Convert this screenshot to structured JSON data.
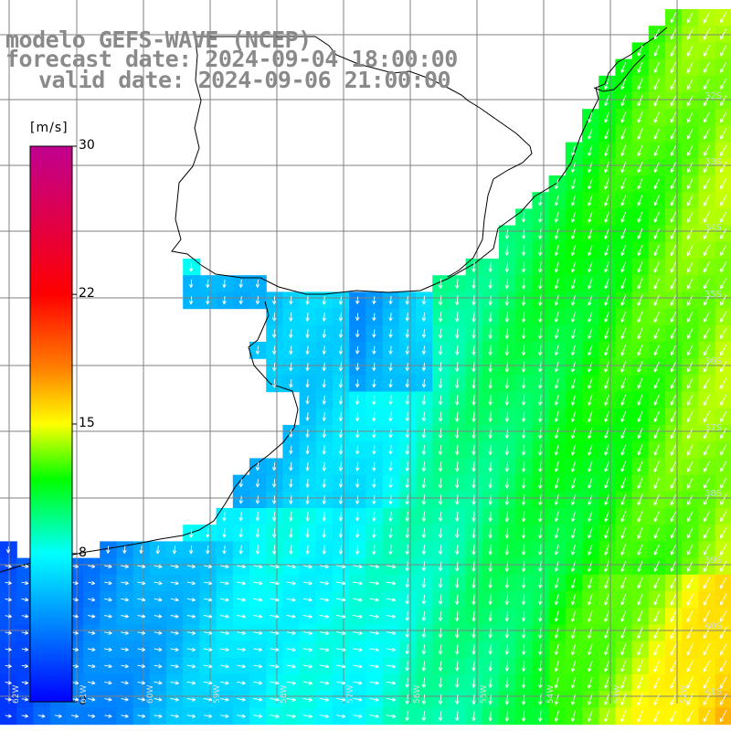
{
  "title": {
    "line1": "modelo GEFS-WAVE (NCEP)",
    "line2": "forecast date: 2024-09-04 18:00:00",
    "line3": "valid date: 2024-09-06 21:00:00"
  },
  "colorbar": {
    "unit": "[m/s]",
    "min": 0,
    "max": 30,
    "ticks": [
      "30",
      "22",
      "15",
      "8",
      "0"
    ],
    "tick_values": [
      30,
      22,
      15,
      8,
      0
    ],
    "stops": [
      "#0000ff",
      "#0080ff",
      "#00ffff",
      "#00ff00",
      "#ffff00",
      "#ff8000",
      "#ff0000",
      "#c00090"
    ],
    "stop_values": [
      0,
      4,
      8,
      12,
      15,
      18,
      22,
      30
    ]
  },
  "grid": {
    "lat_labels": [
      "32S",
      "33S",
      "34S",
      "35S",
      "36S",
      "37S",
      "38S",
      "39S",
      "40S",
      "41S"
    ],
    "lon_labels": [
      "62W",
      "61W",
      "60W",
      "59W",
      "58W",
      "57W",
      "56W",
      "55W",
      "54W",
      "53W",
      "52W"
    ]
  },
  "colors": {
    "land": "#ffffff",
    "grid_line": "#808080",
    "coast": "#000000",
    "arrow": "#ffffff",
    "title": "#8a8a8a"
  }
}
